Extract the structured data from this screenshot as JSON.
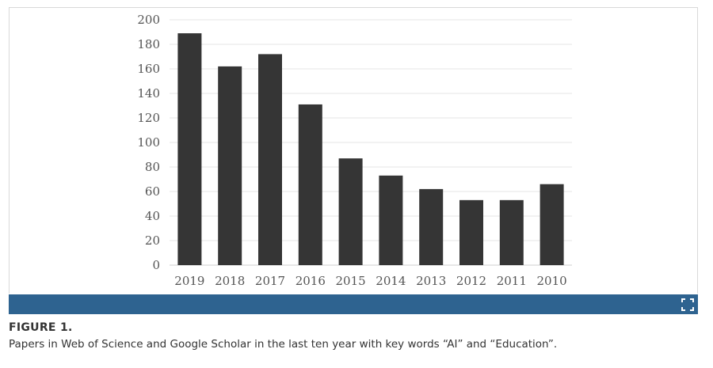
{
  "chart_data": {
    "type": "bar",
    "categories": [
      "2019",
      "2018",
      "2017",
      "2016",
      "2015",
      "2014",
      "2013",
      "2012",
      "2011",
      "2010"
    ],
    "values": [
      189,
      162,
      172,
      131,
      87,
      73,
      62,
      53,
      53,
      66
    ],
    "title": "",
    "xlabel": "",
    "ylabel": "",
    "ylim": [
      0,
      200
    ],
    "yticks": [
      0,
      20,
      40,
      60,
      80,
      100,
      120,
      140,
      160,
      180,
      200
    ],
    "grid": true,
    "legend": "none",
    "bar_color": "#353535",
    "grid_color": "#e6e6e6"
  },
  "toolbar": {
    "bar_color": "#2e6390",
    "expand_icon": "expand-icon"
  },
  "caption": {
    "label": "FIGURE 1.",
    "text": "Papers in Web of Science and Google Scholar in the last ten year with key words “AI” and “Education”."
  }
}
